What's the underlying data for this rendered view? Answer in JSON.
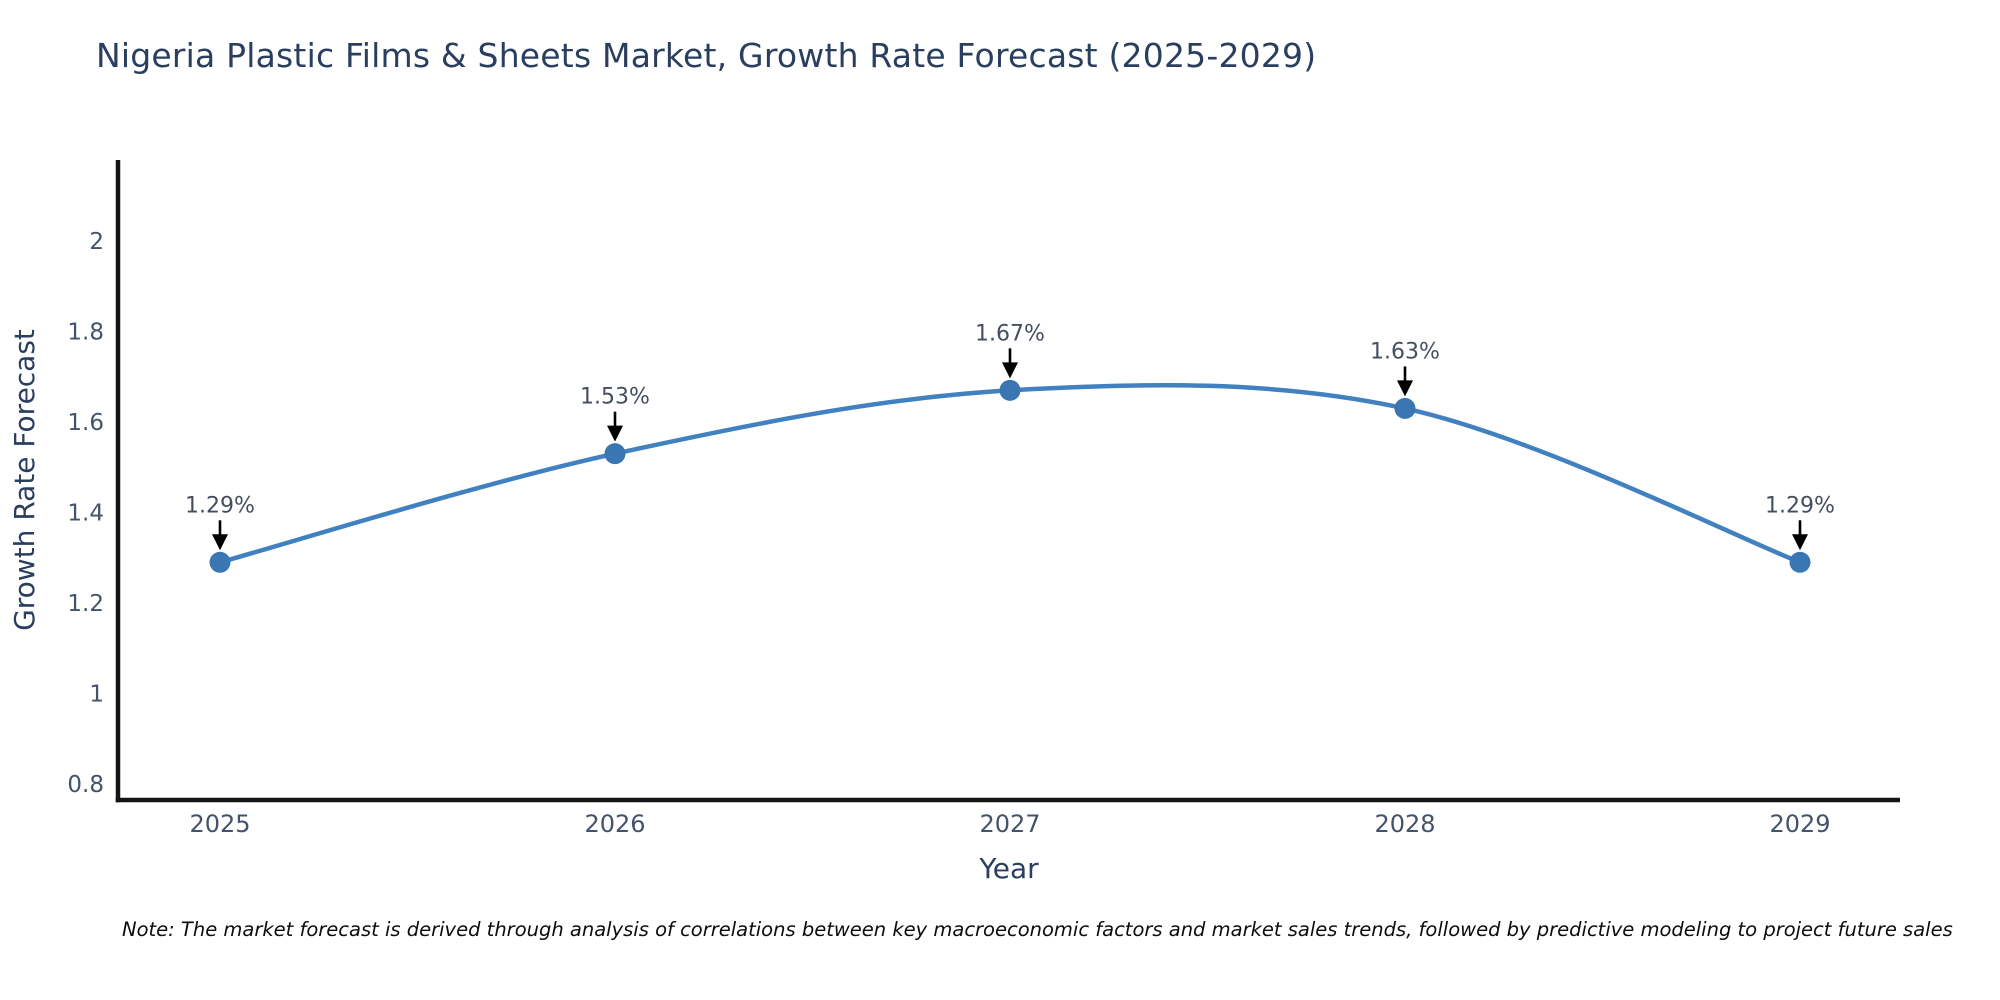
{
  "header": {
    "title": "Nigeria Plastic Films & Sheets Market, Growth Rate Forecast (2025-2029)"
  },
  "chart_data": {
    "type": "line",
    "title": "Nigeria Plastic Films & Sheets Market, Growth Rate Forecast (2025-2029)",
    "x": [
      2025,
      2026,
      2027,
      2028,
      2029
    ],
    "series": [
      {
        "name": "Growth Rate Forecast",
        "values": [
          1.29,
          1.53,
          1.67,
          1.63,
          1.29
        ]
      }
    ],
    "point_labels": [
      "1.29%",
      "1.53%",
      "1.67%",
      "1.63%",
      "1.29%"
    ],
    "xlabel": "Year",
    "ylabel": "Growth Rate Forecast",
    "xtick_labels": [
      "2025",
      "2026",
      "2027",
      "2028",
      "2029"
    ],
    "yticks": [
      0.8,
      1,
      1.2,
      1.4,
      1.6,
      1.8,
      2
    ],
    "ytick_labels": [
      "0.8",
      "1",
      "1.2",
      "1.4",
      "1.6",
      "1.8",
      "2"
    ],
    "ylim": [
      0.77,
      2.19
    ],
    "grid": false,
    "legend": "none",
    "line_shape": "spline",
    "markers": true,
    "annotations": "value label with downward black arrow above each data point"
  },
  "footnote": {
    "text": "Note: The market forecast is derived through analysis of correlations between key macroeconomic factors and market sales trends, followed by predictive modeling to project future sales"
  },
  "colors": {
    "line": "#4181bf",
    "marker": "#3a76b2",
    "axis_line": "#141414",
    "tick_text": "#44536b",
    "title_text": "#2a3f5f",
    "axis_title_text": "#2a3f5f",
    "annotation_text": "#454e5e",
    "arrow": "#000000",
    "note_text": "#0d0d0d",
    "background": "#ffffff"
  }
}
